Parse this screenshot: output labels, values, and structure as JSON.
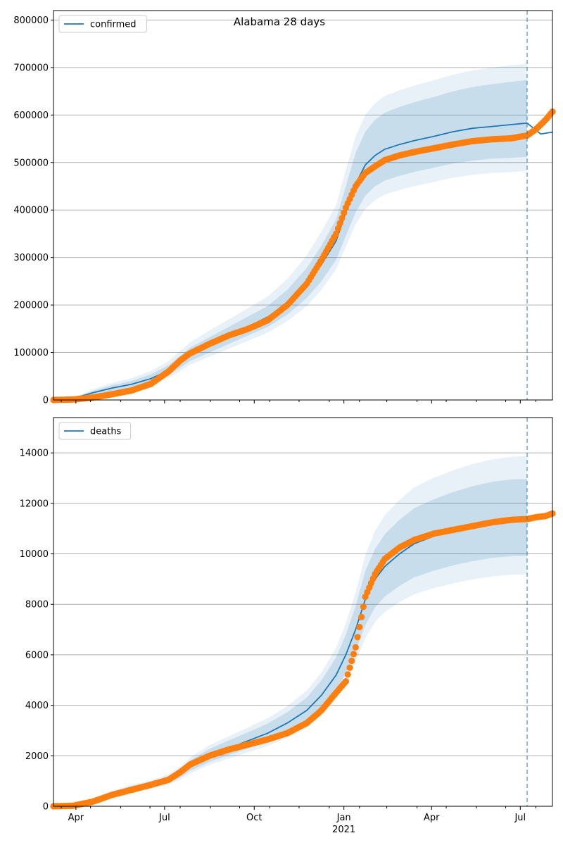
{
  "chart_data": [
    {
      "type": "line",
      "title": "Alabama 28 days",
      "xlabel": "",
      "ylabel": "",
      "ylim": [
        0,
        820000
      ],
      "yticks": [
        0,
        100000,
        200000,
        300000,
        400000,
        500000,
        600000,
        700000,
        800000
      ],
      "legend": {
        "label": "confirmed",
        "position": "top-left"
      },
      "forecast_start_day": 486,
      "series": [
        {
          "name": "confirmed",
          "role": "median",
          "days": [
            0,
            20,
            40,
            60,
            80,
            100,
            118,
            130,
            140,
            160,
            180,
            200,
            220,
            240,
            260,
            275,
            290,
            300,
            310,
            320,
            330,
            340,
            355,
            370,
            390,
            410,
            430,
            450,
            470,
            486,
            500,
            512
          ],
          "values": [
            0,
            3000,
            15000,
            25000,
            33000,
            45000,
            62000,
            80000,
            95000,
            115000,
            135000,
            155000,
            175000,
            205000,
            245000,
            285000,
            335000,
            395000,
            455000,
            495000,
            515000,
            528000,
            538000,
            546000,
            555000,
            565000,
            572000,
            576000,
            580000,
            583000,
            560000,
            564000
          ]
        },
        {
          "name": "confirmed observed",
          "role": "observed",
          "days": [
            0,
            20,
            40,
            60,
            80,
            100,
            118,
            130,
            140,
            160,
            180,
            200,
            220,
            240,
            260,
            275,
            290,
            300,
            310,
            320,
            330,
            340,
            355,
            370,
            390,
            410,
            430,
            450,
            470,
            486,
            495,
            505,
            512
          ],
          "values": [
            0,
            1000,
            5000,
            12000,
            20000,
            34000,
            60000,
            83000,
            98000,
            118000,
            136000,
            150000,
            168000,
            200000,
            245000,
            295000,
            350000,
            405000,
            450000,
            478000,
            492000,
            505000,
            515000,
            522000,
            530000,
            538000,
            545000,
            549000,
            551000,
            557000,
            570000,
            590000,
            607000
          ]
        }
      ],
      "bands": [
        {
          "lower": [
            0,
            2000,
            11000,
            19000,
            26000,
            37000,
            52000,
            68000,
            82000,
            100000,
            118000,
            136000,
            154000,
            180000,
            215000,
            250000,
            295000,
            345000,
            395000,
            430000,
            450000,
            462000,
            472000,
            480000,
            489000,
            498000,
            504000,
            508000,
            510000,
            512000
          ],
          "upper": [
            0,
            4000,
            19000,
            31000,
            40000,
            54000,
            73000,
            93000,
            110000,
            132000,
            154000,
            176000,
            198000,
            232000,
            278000,
            325000,
            380000,
            450000,
            520000,
            565000,
            590000,
            605000,
            617000,
            627000,
            638000,
            650000,
            659000,
            665000,
            670000,
            674000
          ]
        },
        {
          "lower": [
            0,
            1500,
            9000,
            16000,
            22000,
            32000,
            46000,
            61000,
            74000,
            91000,
            108000,
            125000,
            142000,
            166000,
            198000,
            232000,
            275000,
            322000,
            370000,
            402000,
            421000,
            433000,
            442000,
            450000,
            459000,
            468000,
            474000,
            478000,
            480000,
            482000
          ],
          "upper": [
            0,
            4500,
            22000,
            36000,
            46000,
            61000,
            82000,
            103000,
            121000,
            146000,
            170000,
            194000,
            218000,
            255000,
            305000,
            355000,
            410000,
            485000,
            555000,
            600000,
            625000,
            640000,
            652000,
            662000,
            673000,
            685000,
            694000,
            700000,
            705000,
            708000
          ]
        }
      ],
      "xticks": [
        {
          "day": 23,
          "label": "Apr"
        },
        {
          "day": 114,
          "label": "Jul"
        },
        {
          "day": 206,
          "label": "Oct"
        },
        {
          "day": 298,
          "label": "Jan"
        },
        {
          "day": 388,
          "label": "Apr"
        },
        {
          "day": 479,
          "label": "Jul"
        }
      ]
    },
    {
      "type": "line",
      "title": "",
      "xlabel": "",
      "ylabel": "",
      "ylim": [
        0,
        15400
      ],
      "yticks": [
        0,
        2000,
        4000,
        6000,
        8000,
        10000,
        12000,
        14000
      ],
      "legend": {
        "label": "deaths",
        "position": "top-left"
      },
      "forecast_start_day": 486,
      "series": [
        {
          "name": "deaths",
          "role": "median",
          "days": [
            0,
            20,
            40,
            60,
            80,
            100,
            118,
            130,
            140,
            160,
            180,
            200,
            220,
            240,
            260,
            275,
            290,
            300,
            310,
            320,
            330,
            340,
            355,
            370,
            390,
            410,
            430,
            450,
            470,
            486,
            495,
            505,
            512
          ],
          "values": [
            0,
            30,
            250,
            500,
            700,
            850,
            1050,
            1300,
            1600,
            2000,
            2300,
            2600,
            2900,
            3300,
            3800,
            4400,
            5200,
            6000,
            7000,
            8200,
            9000,
            9500,
            10000,
            10400,
            10700,
            10950,
            11150,
            11300,
            11380,
            11400,
            11450,
            11520,
            11600
          ]
        },
        {
          "name": "deaths observed",
          "role": "observed",
          "days": [
            0,
            20,
            40,
            60,
            80,
            100,
            118,
            130,
            140,
            160,
            180,
            200,
            220,
            240,
            260,
            275,
            290,
            300,
            310,
            320,
            330,
            340,
            355,
            370,
            390,
            410,
            430,
            450,
            470,
            486,
            495,
            505,
            512
          ],
          "values": [
            0,
            20,
            180,
            450,
            650,
            850,
            1050,
            1350,
            1650,
            2000,
            2250,
            2450,
            2650,
            2900,
            3300,
            3800,
            4500,
            4950,
            6300,
            8300,
            9200,
            9800,
            10250,
            10550,
            10800,
            10950,
            11100,
            11250,
            11350,
            11380,
            11450,
            11500,
            11600
          ]
        }
      ],
      "bands": [
        {
          "lower": [
            0,
            20,
            210,
            430,
            600,
            740,
            920,
            1140,
            1400,
            1760,
            2030,
            2300,
            2570,
            2920,
            3350,
            3880,
            4590,
            5270,
            6150,
            7180,
            7880,
            8310,
            8730,
            9070,
            9330,
            9540,
            9710,
            9840,
            9910,
            9930
          ],
          "upper": [
            0,
            40,
            290,
            570,
            800,
            970,
            1190,
            1470,
            1810,
            2270,
            2610,
            2940,
            3280,
            3730,
            4310,
            4990,
            5900,
            6800,
            7930,
            9320,
            10200,
            10780,
            11350,
            11810,
            12160,
            12450,
            12680,
            12850,
            12950,
            12970
          ]
        },
        {
          "lower": [
            0,
            15,
            190,
            400,
            560,
            690,
            860,
            1060,
            1300,
            1640,
            1890,
            2140,
            2390,
            2720,
            3120,
            3610,
            4270,
            4900,
            5710,
            6660,
            7300,
            7700,
            8090,
            8400,
            8640,
            8830,
            8990,
            9110,
            9170,
            9190
          ],
          "upper": [
            0,
            45,
            310,
            610,
            850,
            1030,
            1270,
            1560,
            1930,
            2420,
            2780,
            3130,
            3490,
            3970,
            4590,
            5310,
            6280,
            7250,
            8470,
            9960,
            10910,
            11530,
            12140,
            12630,
            13010,
            13310,
            13560,
            13740,
            13850,
            13870
          ]
        }
      ],
      "xticks": [
        {
          "day": 23,
          "label": "Apr"
        },
        {
          "day": 114,
          "label": "Jul"
        },
        {
          "day": 206,
          "label": "Oct"
        },
        {
          "day": 298,
          "label": "Jan"
        },
        {
          "day": 388,
          "label": "Apr"
        },
        {
          "day": 479,
          "label": "Jul"
        }
      ],
      "xsublabel": {
        "day": 298,
        "label": "2021"
      }
    }
  ],
  "colors": {
    "median": "#1f77b4",
    "observed": "#ff7f0e",
    "band": "#1f77b4",
    "grid": "#b0b0b0",
    "axis": "#000000"
  }
}
